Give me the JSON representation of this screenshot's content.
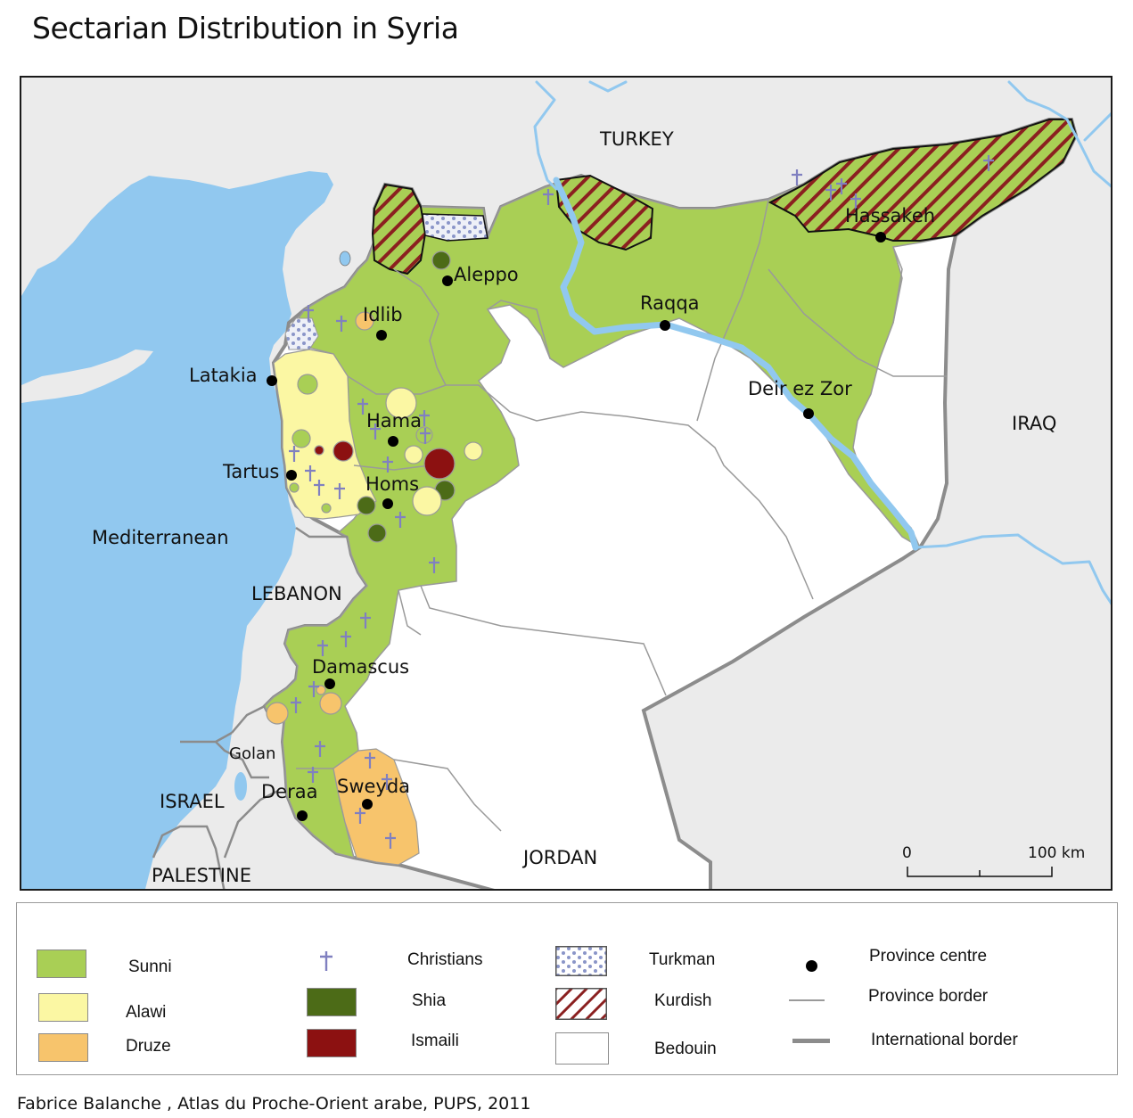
{
  "title": "Sectarian Distribution in Syria",
  "colors": {
    "sunni": "#a9cf55",
    "alawi": "#fbf7a3",
    "druze": "#f7c46c",
    "shia": "#4c6b17",
    "ismaili": "#8c1111",
    "christian": "#8080c0",
    "kurdish_hatch": "#8b2020",
    "turkman_dots": "#8a95c8",
    "sea": "#91c8ef",
    "neighbor_land": "#ebebeb",
    "bedouin": "#ffffff",
    "province_border": "#9a9a9a",
    "international_border": "#8c8c8c"
  },
  "map": {
    "countries": {
      "turkey": "TURKEY",
      "iraq": "IRAQ",
      "jordan": "JORDAN",
      "lebanon": "LEBANON",
      "israel": "ISRAEL",
      "palestine": "PALESTINE",
      "golan": "Golan",
      "sea": "Mediterranean"
    },
    "cities": {
      "aleppo": "Aleppo",
      "idlib": "Idlib",
      "latakia": "Latakia",
      "hama": "Hama",
      "tartus": "Tartus",
      "homs": "Homs",
      "raqqa": "Raqqa",
      "hassakeh": "Hassakeh",
      "deir_ez_zor": "Deir ez Zor",
      "damascus": "Damascus",
      "deraa": "Deraa",
      "sweyda": "Sweyda"
    },
    "scale": {
      "start": "0",
      "end": "100 km"
    }
  },
  "legend": {
    "sunni": "Sunni",
    "alawi": "Alawi",
    "druze": "Druze",
    "christians": "Christians",
    "shia": "Shia",
    "ismaili": "Ismaili",
    "turkman": "Turkman",
    "kurdish": "Kurdish",
    "bedouin": "Bedouin",
    "province_centre": "Province centre",
    "province_border": "Province border",
    "international_border": "International border"
  },
  "credit": "Fabrice Balanche , Atlas du Proche-Orient arabe, PUPS, 2011"
}
